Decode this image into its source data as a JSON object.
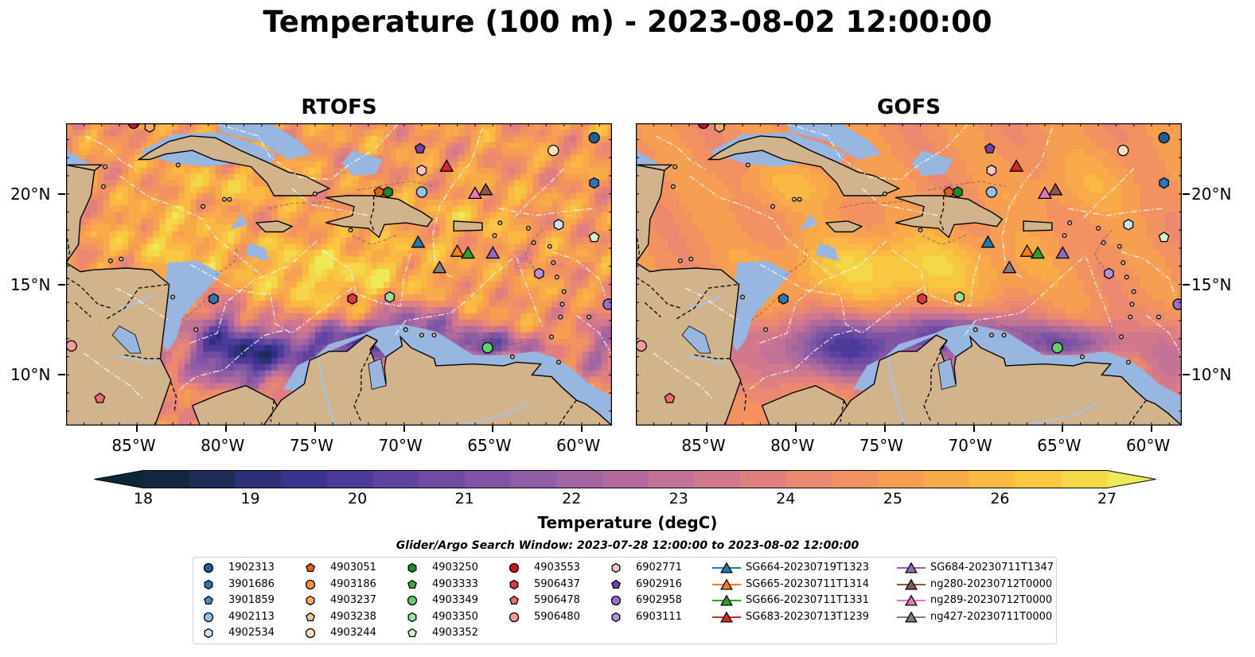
{
  "title": "Temperature (100 m) - 2023-08-02 12:00:00",
  "maps": [
    {
      "id": "rtofs",
      "title": "RTOFS"
    },
    {
      "id": "gofs",
      "title": "GOFS"
    }
  ],
  "axes": {
    "lon_ticks": [
      "85°W",
      "80°W",
      "75°W",
      "70°W",
      "65°W",
      "60°W"
    ],
    "lat_ticks": [
      "20°N",
      "15°N",
      "10°N"
    ],
    "lon_range": [
      -89,
      -58.3
    ],
    "lat_range": [
      7.2,
      23.9
    ]
  },
  "colorbar": {
    "label": "Temperature (degC)",
    "ticks": [
      "18",
      "19",
      "20",
      "21",
      "22",
      "23",
      "24",
      "25",
      "26",
      "27"
    ],
    "range": [
      18,
      27
    ],
    "colors": [
      "#0b2636",
      "#14283f",
      "#1f2c57",
      "#2b3078",
      "#3b338f",
      "#4d3a9b",
      "#5e43a0",
      "#6f4ba3",
      "#7f54a4",
      "#8f5da3",
      "#a064a0",
      "#b16a9c",
      "#c27296",
      "#d2788d",
      "#e07f80",
      "#eb8870",
      "#f29260",
      "#f69e52",
      "#f8ab48",
      "#f9b943",
      "#f8c843",
      "#f4d84a",
      "#ecea59"
    ]
  },
  "legend": {
    "title": "Glider/Argo Search Window: 2023-07-28 12:00:00 to 2023-08-02 12:00:00",
    "columns": [
      [
        {
          "label": "1902313",
          "marker": "circle",
          "color": "#1f5f9a"
        },
        {
          "label": "3901686",
          "marker": "hexagon",
          "color": "#2f77b3"
        },
        {
          "label": "3901859",
          "marker": "pentagon",
          "color": "#4a8fc6"
        },
        {
          "label": "4902113",
          "marker": "circle",
          "color": "#8ec3ea"
        },
        {
          "label": "4902534",
          "marker": "hexagon",
          "color": "#c8e4f8"
        }
      ],
      [
        {
          "label": "4903051",
          "marker": "pentagon",
          "color": "#e0620c"
        },
        {
          "label": "4903186",
          "marker": "circle",
          "color": "#f6913e"
        },
        {
          "label": "4903237",
          "marker": "hexagon",
          "color": "#f9ad68"
        },
        {
          "label": "4903238",
          "marker": "pentagon",
          "color": "#fcc791"
        },
        {
          "label": "4903244",
          "marker": "circle",
          "color": "#fde0c0"
        }
      ],
      [
        {
          "label": "4903250",
          "marker": "hexagon",
          "color": "#1f8a2b"
        },
        {
          "label": "4903333",
          "marker": "pentagon",
          "color": "#3fa84a"
        },
        {
          "label": "4903349",
          "marker": "circle",
          "color": "#5fd06a"
        },
        {
          "label": "4903350",
          "marker": "hexagon",
          "color": "#97e39a"
        },
        {
          "label": "4903352",
          "marker": "pentagon",
          "color": "#cff4ce"
        }
      ],
      [
        {
          "label": "4903553",
          "marker": "circle",
          "color": "#c8181d"
        },
        {
          "label": "5906437",
          "marker": "hexagon",
          "color": "#dc3a3f"
        },
        {
          "label": "5906478",
          "marker": "pentagon",
          "color": "#ee6b6e"
        },
        {
          "label": "5906480",
          "marker": "circle",
          "color": "#f59b98"
        }
      ],
      [
        {
          "label": "6902771",
          "marker": "hexagon",
          "color": "#f7c4c4"
        },
        {
          "label": "6902916",
          "marker": "pentagon",
          "color": "#6f43a8"
        },
        {
          "label": "6902958",
          "marker": "circle",
          "color": "#9b6fce"
        },
        {
          "label": "6903111",
          "marker": "hexagon",
          "color": "#b394dc"
        }
      ],
      [
        {
          "label": "SG664-20230719T1323",
          "marker": "triangle",
          "color": "#1f77b4",
          "line": true
        },
        {
          "label": "SG665-20230711T1314",
          "marker": "triangle",
          "color": "#ff7f0e",
          "line": true
        },
        {
          "label": "SG666-20230711T1331",
          "marker": "triangle",
          "color": "#2ca02c",
          "line": true
        },
        {
          "label": "SG683-20230713T1239",
          "marker": "triangle",
          "color": "#d62728",
          "line": true
        }
      ],
      [
        {
          "label": "SG684-20230711T1347",
          "marker": "triangle",
          "color": "#9467bd",
          "line": true
        },
        {
          "label": "ng280-20230712T0000",
          "marker": "triangle",
          "color": "#8c564b",
          "line": true
        },
        {
          "label": "ng289-20230712T0000",
          "marker": "triangle",
          "color": "#e377c2",
          "line": true
        },
        {
          "label": "ng427-20230711T0000",
          "marker": "triangle",
          "color": "#7f7f7f",
          "line": true
        }
      ]
    ]
  },
  "observations": [
    {
      "lon": -59.3,
      "lat": 23.1,
      "marker": "circle",
      "color": "#1f5f9a"
    },
    {
      "lon": -59.3,
      "lat": 20.6,
      "marker": "hexagon",
      "color": "#2f77b3"
    },
    {
      "lon": -69.1,
      "lat": 22.5,
      "marker": "pentagon",
      "color": "#6f43a8"
    },
    {
      "lon": -69.0,
      "lat": 21.3,
      "marker": "hexagon",
      "color": "#f7c4c4"
    },
    {
      "lon": -61.6,
      "lat": 22.4,
      "marker": "circle",
      "color": "#fde0c0"
    },
    {
      "lon": -69.0,
      "lat": 20.1,
      "marker": "circle",
      "color": "#8ec3ea"
    },
    {
      "lon": -70.9,
      "lat": 20.1,
      "marker": "hexagon",
      "color": "#1f8a2b"
    },
    {
      "lon": -71.4,
      "lat": 20.1,
      "marker": "pentagon",
      "color": "#e0620c"
    },
    {
      "lon": -61.3,
      "lat": 18.3,
      "marker": "hexagon",
      "color": "#c8e4f8"
    },
    {
      "lon": -59.3,
      "lat": 17.6,
      "marker": "pentagon",
      "color": "#cff4ce"
    },
    {
      "lon": -62.4,
      "lat": 15.6,
      "marker": "hexagon",
      "color": "#b394dc"
    },
    {
      "lon": -58.5,
      "lat": 13.9,
      "marker": "circle",
      "color": "#9b6fce"
    },
    {
      "lon": -72.9,
      "lat": 14.2,
      "marker": "hexagon",
      "color": "#dc3a3f"
    },
    {
      "lon": -70.8,
      "lat": 14.3,
      "marker": "hexagon",
      "color": "#97e39a"
    },
    {
      "lon": -80.7,
      "lat": 14.2,
      "marker": "hexagon",
      "color": "#2f77b3"
    },
    {
      "lon": -65.3,
      "lat": 11.5,
      "marker": "circle",
      "color": "#5fd06a"
    },
    {
      "lon": -88.7,
      "lat": 11.6,
      "marker": "circle",
      "color": "#f59b98"
    },
    {
      "lon": -87.1,
      "lat": 8.7,
      "marker": "pentagon",
      "color": "#ee6b6e"
    },
    {
      "lon": -84.3,
      "lat": 23.7,
      "marker": "hexagon",
      "color": "#f9ad68"
    },
    {
      "lon": -85.2,
      "lat": 23.9,
      "marker": "circle",
      "color": "#c8181d"
    }
  ],
  "gliders": [
    {
      "lon": -67.6,
      "lat": 21.5,
      "color": "#d62728"
    },
    {
      "lon": -66.0,
      "lat": 20.0,
      "color": "#e377c2"
    },
    {
      "lon": -65.4,
      "lat": 20.2,
      "color": "#8c564b"
    },
    {
      "lon": -69.2,
      "lat": 17.3,
      "color": "#1f77b4"
    },
    {
      "lon": -67.0,
      "lat": 16.8,
      "color": "#ff7f0e"
    },
    {
      "lon": -66.4,
      "lat": 16.7,
      "color": "#2ca02c"
    },
    {
      "lon": -65.0,
      "lat": 16.7,
      "color": "#9467bd"
    },
    {
      "lon": -68.0,
      "lat": 15.9,
      "color": "#7f7f7f"
    }
  ]
}
